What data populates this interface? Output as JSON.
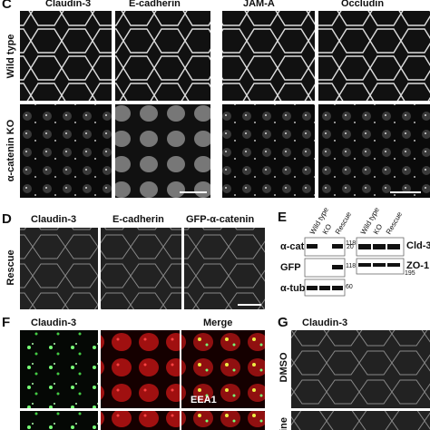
{
  "panel_c": {
    "label": "C",
    "columns": [
      "Claudin-3",
      "E-cadherin",
      "JAM-A",
      "Occludin"
    ],
    "rows": [
      "Wild type",
      "α-catenin KO"
    ]
  },
  "panel_d": {
    "label": "D",
    "columns": [
      "Claudin-3",
      "E-cadherin",
      "GFP-α-catenin"
    ],
    "row": "Rescue"
  },
  "panel_e": {
    "label": "E",
    "lanes": [
      "Wild type",
      "KO",
      "Rescue"
    ],
    "left_blots": [
      {
        "name": "α-cat",
        "marker": "118"
      },
      {
        "name": "GFP",
        "marker": "118"
      },
      {
        "name": "α-tub",
        "marker": "60"
      }
    ],
    "right_blots": [
      {
        "name": "Cld-3",
        "marker": "20"
      },
      {
        "name": "ZO-1",
        "marker": "195"
      }
    ]
  },
  "panel_f": {
    "label": "F",
    "columns": [
      "Claudin-3",
      "Merge"
    ],
    "inset_label": "EEA1"
  },
  "panel_g": {
    "label": "G",
    "column": "Claudin-3",
    "rows": [
      "DMSO",
      "cine"
    ]
  }
}
